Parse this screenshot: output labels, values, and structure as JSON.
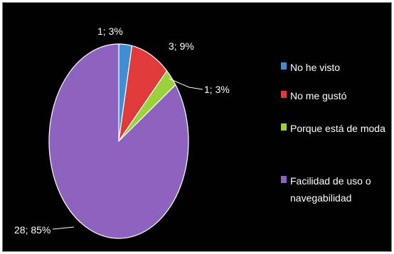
{
  "chart_data": {
    "type": "pie",
    "title": "",
    "legend_position": "right",
    "series": [
      {
        "name": "",
        "values": [
          1,
          3,
          1,
          28
        ]
      }
    ],
    "categories": [
      "No he visto",
      "No me gustó",
      "Porque está de moda",
      "Facilidad de uso o navegabilidad"
    ],
    "values": [
      1,
      3,
      1,
      28
    ],
    "data_labels": [
      "1; 3%",
      "3; 9%",
      "1; 3%",
      "28; 85%"
    ],
    "colors": [
      "#3f8fd6",
      "#e03a3a",
      "#9bd23c",
      "#8e63c0"
    ],
    "legend": [
      {
        "lines": [
          "No he visto"
        ]
      },
      {
        "lines": [
          "No me gustó"
        ]
      },
      {
        "lines": [
          "Porque está de moda"
        ]
      },
      {
        "lines": [
          "Facilidad de uso o",
          "navegabilidad"
        ]
      }
    ]
  }
}
